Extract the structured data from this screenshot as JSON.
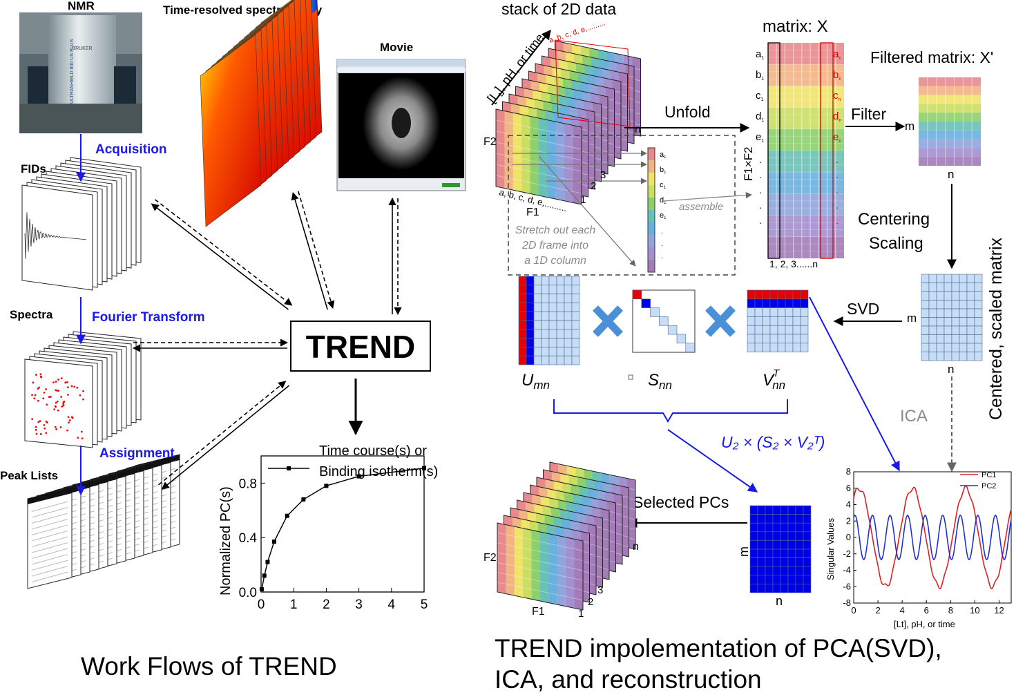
{
  "left": {
    "nmr": "NMR",
    "trs": "Time-resolved spectroscopy",
    "movie": "Movie",
    "acquisition": "Acquisition",
    "fids": "FIDs",
    "spectra": "Spectra",
    "fourier": "Fourier Transform",
    "assignment": "Assignment",
    "peaklists": "Peak Lists",
    "trend": "TREND",
    "caption": "Work Flows of TREND",
    "magnet_brand": "BRUKER",
    "magnet_model": "ULTRASHIELD 800 US PLUS"
  },
  "plot": {
    "legend": "Time course(s) or",
    "legend2": "Binding isotherm(s)",
    "ylabel": "Normalized PC(s)"
  },
  "right": {
    "stack_title": "stack of 2D data",
    "stack_axis": "[L",
    "stack_axis_sub": "t",
    "stack_axis_rest": "], pH, or time",
    "stack_cols": "a, b, c, d, e,.........",
    "stack_bottom_cols": "a, b, c, d, e,.........",
    "f1": "F1",
    "f2": "F2",
    "n": "n",
    "m": "m",
    "num1": "1",
    "num2": "2",
    "num3": "3",
    "stretch1": "Stretch out each",
    "stretch2": "2D frame into",
    "stretch3": "a 1D column",
    "assemble": "assemble",
    "unfold": "Unfold",
    "matrix_title": "matrix: X",
    "f1xf2": "F1×F2",
    "matrix_cols": "1, 2, 3......n",
    "filtered_title": "Filtered matrix: X'",
    "filter": "Filter",
    "centering": "Centering",
    "scaling": "Scaling",
    "centered_vertical": "Centered, scaled matrix",
    "svd": "SVD",
    "ica": "ICA",
    "u": "U",
    "u_sub": "mn",
    "s": "S",
    "s_sub": "nn",
    "v": "V",
    "v_sub": "nn",
    "v_sup": "T",
    "recon": "U₂ × (S₂ × V₂ᵀ)",
    "selected": "Selected PCs",
    "caption1": "TREND impolementation of PCA(SVD),",
    "caption2": "ICA, and reconstruction",
    "col_labels": [
      "a",
      "b",
      "c",
      "d",
      "e"
    ],
    "col_sub_left": "1",
    "col_sub_right": "n"
  },
  "chart_data": [
    {
      "type": "line",
      "ylabel": "Normalized PC(s)",
      "legend": [
        "Time course(s) or Binding isotherm(s)"
      ],
      "xlim": [
        0,
        5
      ],
      "ylim": [
        0,
        1
      ],
      "xticks": [
        "0",
        "1",
        "2",
        "3",
        "4",
        "5"
      ],
      "yticks": [
        "0.0",
        "0.4",
        "0.8"
      ],
      "series": [
        {
          "x": [
            0.02,
            0.1,
            0.2,
            0.4,
            0.8,
            1.3,
            2.0,
            3.0,
            5.0
          ],
          "y": [
            0.02,
            0.12,
            0.22,
            0.37,
            0.56,
            0.68,
            0.78,
            0.85,
            0.91
          ]
        }
      ]
    },
    {
      "type": "line",
      "xlabel": "[Lt], pH, or time",
      "ylabel": "Singular Values",
      "xlim": [
        0,
        13
      ],
      "ylim": [
        -8,
        8
      ],
      "xticks": [
        "0",
        "2",
        "4",
        "6",
        "8",
        "10",
        "12"
      ],
      "yticks": [
        "-8",
        "-6",
        "-4",
        "-2",
        "0",
        "2",
        "4",
        "6",
        "8"
      ],
      "legend_position": "top-right",
      "series": [
        {
          "name": "PC1",
          "color": "#e02020",
          "amplitude": 6.3,
          "period": 4.4,
          "phase": 0.0
        },
        {
          "name": "PC2",
          "color": "#1f2fd6",
          "amplitude": 2.7,
          "period": 1.45,
          "phase": 0.0
        }
      ]
    }
  ],
  "colors": {
    "blue_text": "#1a1ae6",
    "red": "#e00000",
    "band_colors": [
      "#e8898d",
      "#f2b483",
      "#efe36a",
      "#c9de63",
      "#8ccf6c",
      "#69c0b7",
      "#69b0de",
      "#8fa5db",
      "#a48fcf",
      "#a27bb7"
    ]
  }
}
